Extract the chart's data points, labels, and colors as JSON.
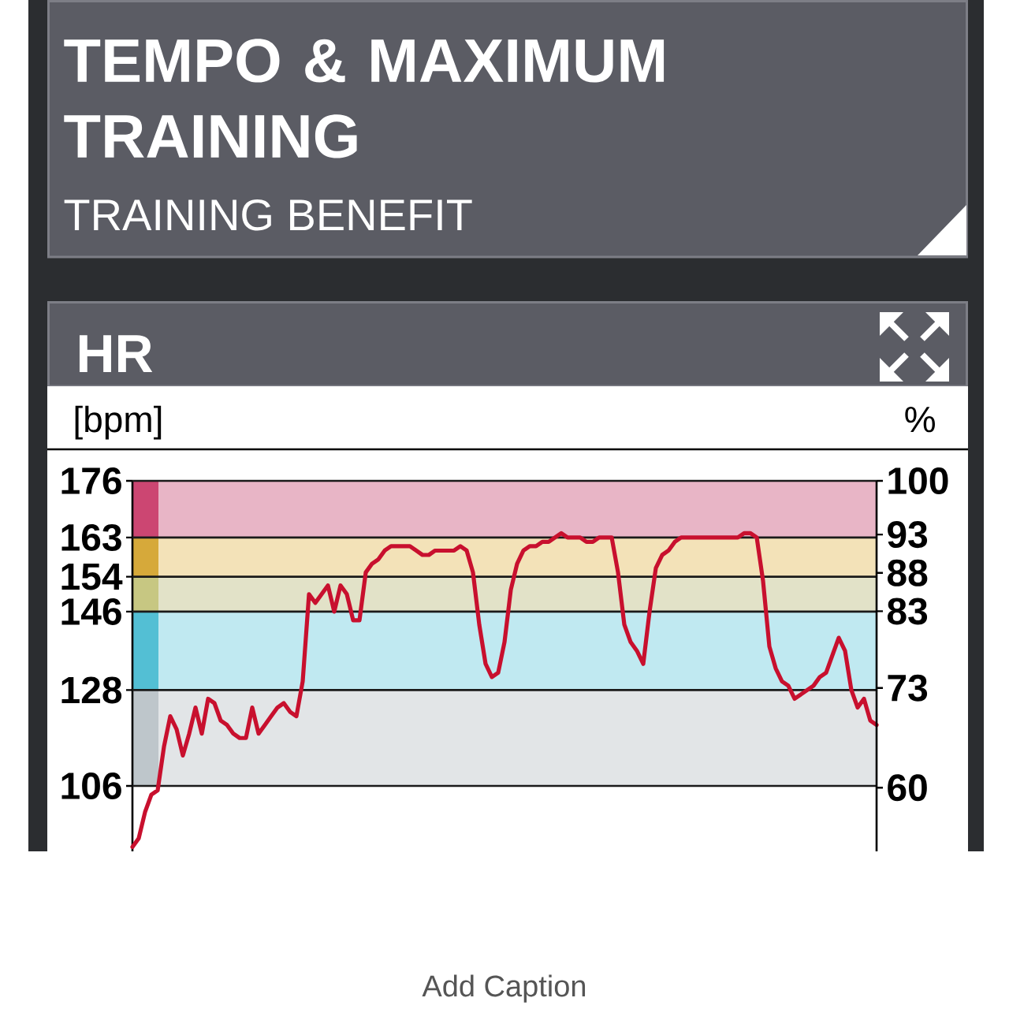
{
  "chart_data": {
    "type": "line",
    "title": "HR",
    "ylabel": "[bpm]",
    "y2label": "%",
    "annotations": [
      "TEMPO & MAXIMUM TRAINING",
      "TRAINING BENEFIT",
      "Add Caption"
    ],
    "categories": [
      null,
      null,
      null,
      null,
      null,
      null,
      null,
      null,
      null,
      null,
      null,
      null,
      null,
      null,
      null,
      null,
      null,
      null,
      null,
      null,
      null,
      null,
      null,
      null,
      null,
      null,
      null,
      null,
      null,
      null,
      null,
      null,
      null,
      null,
      null,
      null,
      null,
      null,
      null,
      null,
      null,
      null,
      null,
      null,
      null,
      null,
      null,
      null,
      null,
      null,
      null,
      null,
      null,
      null,
      null,
      null,
      null,
      null,
      null,
      null,
      null,
      null,
      null,
      null,
      null,
      null,
      null,
      null,
      null,
      null,
      null,
      null,
      null,
      null,
      null,
      null,
      null,
      null,
      null,
      null,
      null,
      null,
      null,
      null,
      null,
      null,
      null,
      null,
      null,
      null,
      null,
      null,
      null,
      null,
      null,
      null,
      null,
      null,
      null,
      null,
      null,
      null,
      null,
      null,
      null,
      null,
      null,
      null,
      null,
      null,
      null,
      null,
      null,
      null,
      null,
      null,
      null,
      null,
      null
    ],
    "series": [
      {
        "color": "#c8102e",
        "values": [
          92,
          94,
          100,
          104,
          105,
          115,
          122,
          119,
          113,
          118,
          124,
          118,
          126,
          125,
          121,
          120,
          118,
          117,
          117,
          124,
          118,
          120,
          122,
          124,
          125,
          123,
          122,
          130,
          150,
          148,
          150,
          152,
          146,
          152,
          150,
          144,
          144,
          155,
          157,
          158,
          160,
          161,
          161,
          161,
          161,
          160,
          159,
          159,
          160,
          160,
          160,
          160,
          161,
          160,
          155,
          143,
          134,
          131,
          132,
          139,
          151,
          157,
          160,
          161,
          161,
          162,
          162,
          163,
          164,
          163,
          163,
          163,
          162,
          162,
          163,
          163,
          163,
          155,
          143,
          139,
          137,
          134,
          146,
          156,
          159,
          160,
          162,
          163,
          163,
          163,
          163,
          163,
          163,
          163,
          163,
          163,
          163,
          164,
          164,
          163,
          153,
          138,
          133,
          130,
          129,
          126,
          127,
          128,
          129,
          131,
          132,
          136,
          140,
          137,
          128,
          124,
          126,
          121,
          120
        ]
      }
    ],
    "ylim": [
      91,
      176
    ],
    "yticks": [
      106,
      128,
      146,
      154,
      163,
      176
    ],
    "y2lim": [
      51.7,
      100
    ],
    "y2ticks": [
      60,
      73,
      83,
      88,
      93,
      100
    ],
    "bands": [
      {
        "axis": "y",
        "from": 163,
        "to": 176,
        "color": "#e8b5c6"
      },
      {
        "axis": "y",
        "from": 154,
        "to": 163,
        "color": "#f3e2b8"
      },
      {
        "axis": "y",
        "from": 146,
        "to": 154,
        "color": "#e2e2c8"
      },
      {
        "axis": "y",
        "from": 128,
        "to": 146,
        "color": "#c0e9f1"
      },
      {
        "axis": "y",
        "from": 106,
        "to": 128,
        "color": "#e2e5e7"
      }
    ],
    "grid": "y",
    "tick_labels": "y"
  }
}
